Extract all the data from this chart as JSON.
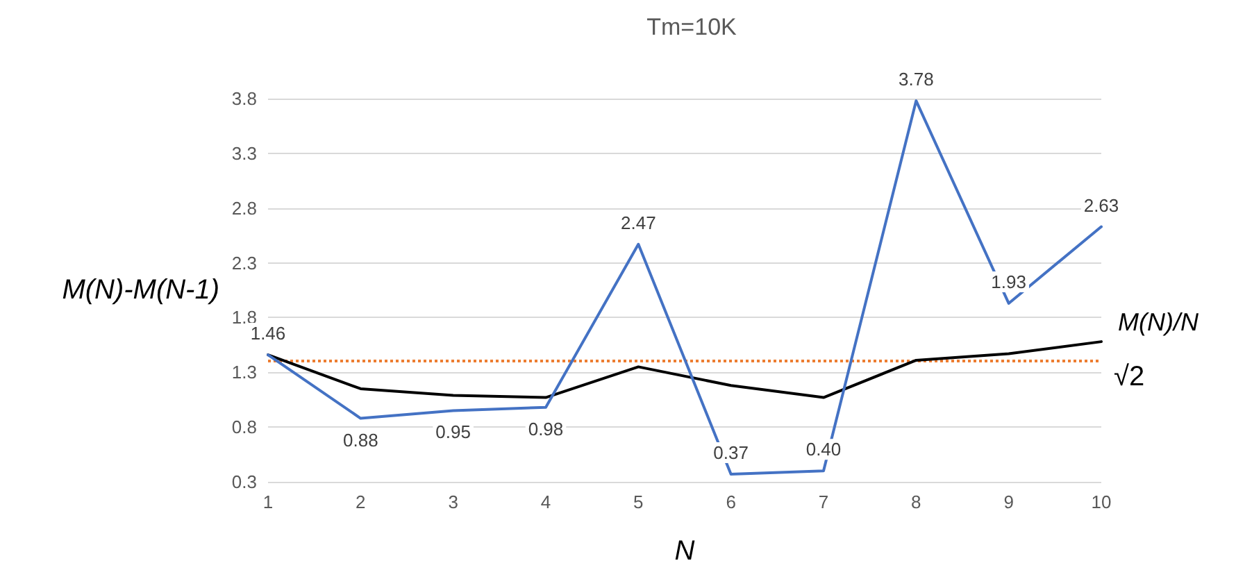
{
  "chart_data": {
    "type": "line",
    "title": "Tm=10K",
    "xlabel": "N",
    "ylabel": "M(N)-M(N-1)",
    "categories": [
      "1",
      "2",
      "3",
      "4",
      "5",
      "6",
      "7",
      "8",
      "9",
      "10"
    ],
    "series": [
      {
        "color": "#4472c4",
        "values": [
          1.46,
          0.88,
          0.95,
          0.98,
          2.47,
          0.37,
          0.4,
          3.78,
          1.93,
          2.63
        ],
        "value_labels": [
          "1.46",
          "0.88",
          "0.95",
          "0.98",
          "2.47",
          "0.37",
          "0.40",
          "3.78",
          "1.93",
          "2.63"
        ]
      },
      {
        "name": "M(N)/N",
        "color": "#000000",
        "values": [
          1.46,
          1.15,
          1.09,
          1.07,
          1.35,
          1.18,
          1.07,
          1.41,
          1.47,
          1.58
        ]
      }
    ],
    "ylim": [
      0.3,
      3.8
    ],
    "yticks": [
      0.3,
      0.8,
      1.3,
      1.8,
      2.3,
      2.8,
      3.3,
      3.8
    ],
    "grid": "y",
    "legend": false,
    "marker": "none",
    "line_style": "solid",
    "ref_lines": [
      {
        "axis": "y",
        "value": 1.414,
        "label": "√2",
        "color": "#ed7d31",
        "line_style": "dotted"
      }
    ]
  }
}
